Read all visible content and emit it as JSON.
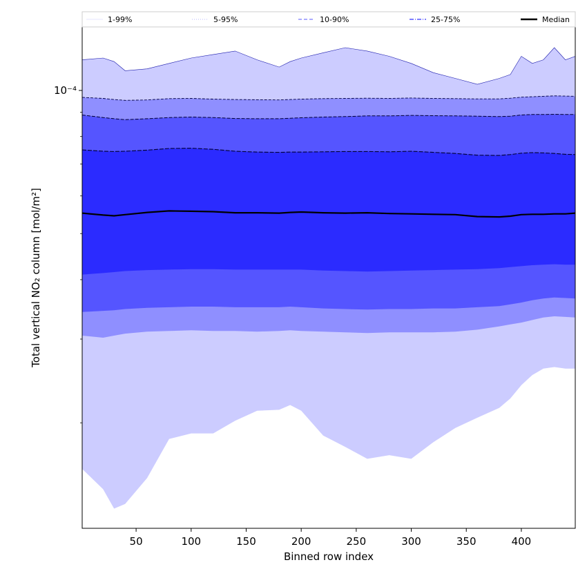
{
  "chart_data": {
    "type": "area",
    "title": "",
    "xlabel": "Binned row index",
    "ylabel": "Total vertical NO₂ column [mol/m²]",
    "xlim": [
      1,
      449
    ],
    "ylim": [
      1.2e-05,
      0.000136
    ],
    "yscale": "log",
    "x_ticks": [
      50,
      100,
      150,
      200,
      250,
      300,
      350,
      400
    ],
    "y_ticks": [
      {
        "value": 0.0001,
        "label": "10⁻⁴"
      }
    ],
    "grid": false,
    "legend_position": "top (horizontal strip)",
    "x": [
      1,
      20,
      30,
      40,
      60,
      80,
      100,
      120,
      140,
      160,
      180,
      190,
      200,
      220,
      240,
      260,
      280,
      300,
      320,
      340,
      360,
      380,
      390,
      400,
      410,
      420,
      430,
      440,
      449
    ],
    "bands": [
      {
        "name": "1-99%",
        "color": "#ccccff",
        "lower": [
          1.6e-05,
          1.45e-05,
          1.32e-05,
          1.35e-05,
          1.53e-05,
          1.85e-05,
          1.9e-05,
          1.9e-05,
          2.02e-05,
          2.12e-05,
          2.13e-05,
          2.18e-05,
          2.12e-05,
          1.88e-05,
          1.78e-05,
          1.68e-05,
          1.71e-05,
          1.68e-05,
          1.82e-05,
          1.95e-05,
          2.05e-05,
          2.15e-05,
          2.25e-05,
          2.4e-05,
          2.52e-05,
          2.6e-05,
          2.62e-05,
          2.6e-05,
          2.6e-05
        ],
        "upper": [
          0.000116,
          0.000117,
          0.000115,
          0.00011,
          0.000111,
          0.000114,
          0.000117,
          0.000119,
          0.000121,
          0.000116,
          0.000112,
          0.000115,
          0.000117,
          0.00012,
          0.000123,
          0.000121,
          0.000118,
          0.000114,
          0.000109,
          0.000106,
          0.000103,
          0.000106,
          0.000108,
          0.000118,
          0.000114,
          0.000116,
          0.000123,
          0.000116,
          0.000118
        ]
      },
      {
        "name": "5-95%",
        "color": "#8f8fff",
        "lower": [
          3.05e-05,
          3.02e-05,
          3.05e-05,
          3.08e-05,
          3.11e-05,
          3.12e-05,
          3.13e-05,
          3.12e-05,
          3.12e-05,
          3.11e-05,
          3.12e-05,
          3.13e-05,
          3.12e-05,
          3.11e-05,
          3.1e-05,
          3.09e-05,
          3.1e-05,
          3.1e-05,
          3.1e-05,
          3.11e-05,
          3.14e-05,
          3.19e-05,
          3.22e-05,
          3.25e-05,
          3.29e-05,
          3.33e-05,
          3.35e-05,
          3.34e-05,
          3.33e-05
        ],
        "upper": [
          9.67e-05,
          9.62e-05,
          9.57e-05,
          9.53e-05,
          9.55e-05,
          9.61e-05,
          9.62e-05,
          9.59e-05,
          9.57e-05,
          9.56e-05,
          9.55e-05,
          9.57e-05,
          9.59e-05,
          9.61e-05,
          9.62e-05,
          9.63e-05,
          9.62e-05,
          9.64e-05,
          9.62e-05,
          9.61e-05,
          9.6e-05,
          9.6e-05,
          9.63e-05,
          9.68e-05,
          9.7e-05,
          9.72e-05,
          9.74e-05,
          9.73e-05,
          9.72e-05
        ]
      },
      {
        "name": "10-90%",
        "color": "#5555ff",
        "lower": [
          3.42e-05,
          3.44e-05,
          3.45e-05,
          3.47e-05,
          3.49e-05,
          3.5e-05,
          3.51e-05,
          3.51e-05,
          3.5e-05,
          3.5e-05,
          3.5e-05,
          3.51e-05,
          3.5e-05,
          3.48e-05,
          3.47e-05,
          3.46e-05,
          3.47e-05,
          3.47e-05,
          3.48e-05,
          3.48e-05,
          3.5e-05,
          3.52e-05,
          3.55e-05,
          3.58e-05,
          3.62e-05,
          3.65e-05,
          3.67e-05,
          3.66e-05,
          3.65e-05
        ],
        "upper": [
          8.88e-05,
          8.77e-05,
          8.72e-05,
          8.68e-05,
          8.72e-05,
          8.77e-05,
          8.79e-05,
          8.77e-05,
          8.73e-05,
          8.72e-05,
          8.72e-05,
          8.74e-05,
          8.76e-05,
          8.79e-05,
          8.81e-05,
          8.84e-05,
          8.84e-05,
          8.86e-05,
          8.85e-05,
          8.84e-05,
          8.83e-05,
          8.81e-05,
          8.83e-05,
          8.88e-05,
          8.9e-05,
          8.9e-05,
          8.91e-05,
          8.9e-05,
          8.9e-05
        ]
      },
      {
        "name": "25-75%",
        "color": "#2b2bff",
        "lower": [
          4.1e-05,
          4.13e-05,
          4.15e-05,
          4.17e-05,
          4.19e-05,
          4.2e-05,
          4.21e-05,
          4.21e-05,
          4.2e-05,
          4.2e-05,
          4.2e-05,
          4.2e-05,
          4.2e-05,
          4.18e-05,
          4.17e-05,
          4.16e-05,
          4.17e-05,
          4.18e-05,
          4.19e-05,
          4.2e-05,
          4.21e-05,
          4.23e-05,
          4.25e-05,
          4.27e-05,
          4.29e-05,
          4.3e-05,
          4.31e-05,
          4.3e-05,
          4.3e-05
        ],
        "upper": [
          7.5e-05,
          7.45e-05,
          7.44e-05,
          7.45e-05,
          7.49e-05,
          7.55e-05,
          7.56e-05,
          7.52e-05,
          7.45e-05,
          7.42e-05,
          7.41e-05,
          7.42e-05,
          7.42e-05,
          7.43e-05,
          7.44e-05,
          7.44e-05,
          7.43e-05,
          7.45e-05,
          7.41e-05,
          7.37e-05,
          7.31e-05,
          7.3e-05,
          7.33e-05,
          7.38e-05,
          7.4e-05,
          7.39e-05,
          7.37e-05,
          7.34e-05,
          7.33e-05
        ]
      }
    ],
    "median": {
      "name": "Median",
      "color": "#000000",
      "values": [
        5.52e-05,
        5.47e-05,
        5.45e-05,
        5.48e-05,
        5.54e-05,
        5.58e-05,
        5.57e-05,
        5.56e-05,
        5.53e-05,
        5.53e-05,
        5.52e-05,
        5.54e-05,
        5.55e-05,
        5.53e-05,
        5.52e-05,
        5.53e-05,
        5.51e-05,
        5.5e-05,
        5.49e-05,
        5.48e-05,
        5.43e-05,
        5.42e-05,
        5.44e-05,
        5.48e-05,
        5.49e-05,
        5.49e-05,
        5.5e-05,
        5.5e-05,
        5.52e-05
      ]
    },
    "legend": [
      {
        "label": "1-99%",
        "color": "#e6e6ff",
        "dash": "solid",
        "width": 1
      },
      {
        "label": "5-95%",
        "color": "#b9b9ff",
        "dash": "dotted",
        "width": 1
      },
      {
        "label": "10-90%",
        "color": "#8f8fff",
        "dash": "dashed",
        "width": 1.5
      },
      {
        "label": "25-75%",
        "color": "#5555ff",
        "dash": "dashdot",
        "width": 1.5
      },
      {
        "label": "Median",
        "color": "#000000",
        "dash": "solid",
        "width": 2.5
      }
    ]
  }
}
